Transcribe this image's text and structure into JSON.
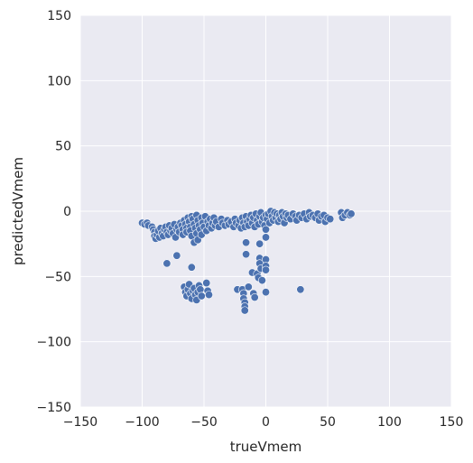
{
  "chart_data": {
    "type": "scatter",
    "xlabel": "trueVmem",
    "ylabel": "predictedVmem",
    "xlim": [
      -150,
      150
    ],
    "ylim": [
      -150,
      150
    ],
    "xticks": [
      -150,
      -100,
      -50,
      0,
      50,
      100,
      150
    ],
    "yticks": [
      -150,
      -100,
      -50,
      0,
      50,
      100,
      150
    ],
    "xtick_labels": [
      "−150",
      "−100",
      "−50",
      "0",
      "50",
      "100",
      "150"
    ],
    "ytick_labels": [
      "−150",
      "−100",
      "−50",
      "0",
      "50",
      "100",
      "150"
    ],
    "grid": true,
    "colors": {
      "background": "#eaeaf2",
      "grid": "#ffffff",
      "marker": "#4c72b0",
      "marker_edge": "#ffffff"
    },
    "series": [
      {
        "points": [
          [
            -100,
            -9
          ],
          [
            -98,
            -10
          ],
          [
            -96,
            -9
          ],
          [
            -95,
            -11
          ],
          [
            -92,
            -12
          ],
          [
            -91,
            -14
          ],
          [
            -90,
            -16
          ],
          [
            -90,
            -19
          ],
          [
            -89,
            -21
          ],
          [
            -88,
            -18
          ],
          [
            -87,
            -15
          ],
          [
            -86,
            -20
          ],
          [
            -85,
            -13
          ],
          [
            -84,
            -17
          ],
          [
            -83,
            -19
          ],
          [
            -82,
            -14
          ],
          [
            -81,
            -12
          ],
          [
            -80,
            -16
          ],
          [
            -80,
            -40
          ],
          [
            -79,
            -18
          ],
          [
            -78,
            -11
          ],
          [
            -77,
            -15
          ],
          [
            -76,
            -13
          ],
          [
            -75,
            -17
          ],
          [
            -74,
            -10
          ],
          [
            -73,
            -20
          ],
          [
            -72,
            -14
          ],
          [
            -72,
            -34
          ],
          [
            -71,
            -12
          ],
          [
            -70,
            -16
          ],
          [
            -69,
            -9
          ],
          [
            -68,
            -11
          ],
          [
            -67,
            -14
          ],
          [
            -67,
            -18
          ],
          [
            -66,
            -7
          ],
          [
            -65,
            -10
          ],
          [
            -64,
            -13
          ],
          [
            -64,
            -16
          ],
          [
            -63,
            -5
          ],
          [
            -62,
            -8
          ],
          [
            -61,
            -12
          ],
          [
            -61,
            -15
          ],
          [
            -60,
            -4
          ],
          [
            -60,
            -19
          ],
          [
            -60,
            -43
          ],
          [
            -59,
            -6
          ],
          [
            -58,
            -10
          ],
          [
            -58,
            -24
          ],
          [
            -57,
            -13
          ],
          [
            -56,
            -3
          ],
          [
            -56,
            -17
          ],
          [
            -55,
            -7
          ],
          [
            -55,
            -22
          ],
          [
            -54,
            -11
          ],
          [
            -53,
            -14
          ],
          [
            -52,
            -5
          ],
          [
            -52,
            -18
          ],
          [
            -51,
            -9
          ],
          [
            -50,
            -12
          ],
          [
            -49,
            -4
          ],
          [
            -48,
            -15
          ],
          [
            -47,
            -8
          ],
          [
            -46,
            -11
          ],
          [
            -45,
            -6
          ],
          [
            -44,
            -13
          ],
          [
            -43,
            -9
          ],
          [
            -42,
            -5
          ],
          [
            -41,
            -11
          ],
          [
            -40,
            -8
          ],
          [
            -38,
            -12
          ],
          [
            -36,
            -6
          ],
          [
            -35,
            -9
          ],
          [
            -33,
            -11
          ],
          [
            -31,
            -7
          ],
          [
            -30,
            -10
          ],
          [
            -28,
            -8
          ],
          [
            -26,
            -12
          ],
          [
            -25,
            -6
          ],
          [
            -24,
            -9
          ],
          [
            -22,
            -11
          ],
          [
            -21,
            -7
          ],
          [
            -20,
            -13
          ],
          [
            -19,
            -5
          ],
          [
            -18,
            -9
          ],
          [
            -17,
            -12
          ],
          [
            -16,
            -4
          ],
          [
            -15,
            -8
          ],
          [
            -14,
            -11
          ],
          [
            -13,
            -6
          ],
          [
            -12,
            -3
          ],
          [
            -11,
            -9
          ],
          [
            -10,
            -5
          ],
          [
            -9,
            -12
          ],
          [
            -8,
            -2
          ],
          [
            -7,
            -7
          ],
          [
            -6,
            -10
          ],
          [
            -5,
            -4
          ],
          [
            -4,
            -1
          ],
          [
            -3,
            -8
          ],
          [
            -2,
            -5
          ],
          [
            -1,
            -11
          ],
          [
            0,
            -3
          ],
          [
            0,
            -14
          ],
          [
            0,
            -20
          ],
          [
            1,
            -6
          ],
          [
            2,
            -2
          ],
          [
            3,
            -9
          ],
          [
            4,
            0
          ],
          [
            5,
            -4
          ],
          [
            6,
            -7
          ],
          [
            7,
            -1
          ],
          [
            8,
            -5
          ],
          [
            9,
            -2
          ],
          [
            10,
            -8
          ],
          [
            11,
            -3
          ],
          [
            12,
            -6
          ],
          [
            13,
            -1
          ],
          [
            14,
            -4
          ],
          [
            15,
            -9
          ],
          [
            16,
            -2
          ],
          [
            17,
            -5
          ],
          [
            18,
            -3
          ],
          [
            20,
            -6
          ],
          [
            22,
            -2
          ],
          [
            24,
            -4
          ],
          [
            25,
            -7
          ],
          [
            27,
            -3
          ],
          [
            29,
            -5
          ],
          [
            31,
            -2
          ],
          [
            33,
            -6
          ],
          [
            35,
            -1
          ],
          [
            36,
            -4
          ],
          [
            38,
            -3
          ],
          [
            40,
            -5
          ],
          [
            42,
            -2
          ],
          [
            43,
            -7
          ],
          [
            45,
            -4
          ],
          [
            47,
            -3
          ],
          [
            48,
            -8
          ],
          [
            50,
            -5
          ],
          [
            52,
            -6
          ],
          [
            61,
            -1
          ],
          [
            62,
            -5
          ],
          [
            64,
            -3
          ],
          [
            66,
            -1
          ],
          [
            68,
            -3
          ],
          [
            69,
            -2
          ],
          [
            -66,
            -58
          ],
          [
            -65,
            -62
          ],
          [
            -64,
            -65
          ],
          [
            -63,
            -60
          ],
          [
            -62,
            -56
          ],
          [
            -61,
            -63
          ],
          [
            -60,
            -67
          ],
          [
            -59,
            -61
          ],
          [
            -58,
            -59
          ],
          [
            -57,
            -64
          ],
          [
            -56,
            -68
          ],
          [
            -55,
            -62
          ],
          [
            -54,
            -57
          ],
          [
            -53,
            -60
          ],
          [
            -52,
            -65
          ],
          [
            -48,
            -55
          ],
          [
            -47,
            -61
          ],
          [
            -46,
            -64
          ],
          [
            -23,
            -60
          ],
          [
            -19,
            -60
          ],
          [
            -18,
            -63
          ],
          [
            -18,
            -67
          ],
          [
            -17,
            -70
          ],
          [
            -17,
            -73
          ],
          [
            -17,
            -76
          ],
          [
            -16,
            -24
          ],
          [
            -16,
            -33
          ],
          [
            -14,
            -58
          ],
          [
            -11,
            -47
          ],
          [
            -10,
            -63
          ],
          [
            -9,
            -66
          ],
          [
            -7,
            -48
          ],
          [
            -6,
            -51
          ],
          [
            -5,
            -25
          ],
          [
            -5,
            -36
          ],
          [
            -5,
            -40
          ],
          [
            -4,
            -44
          ],
          [
            -3,
            -53
          ],
          [
            0,
            -37
          ],
          [
            0,
            -42
          ],
          [
            0,
            -45
          ],
          [
            0,
            -62
          ],
          [
            28,
            -60
          ]
        ]
      }
    ]
  }
}
